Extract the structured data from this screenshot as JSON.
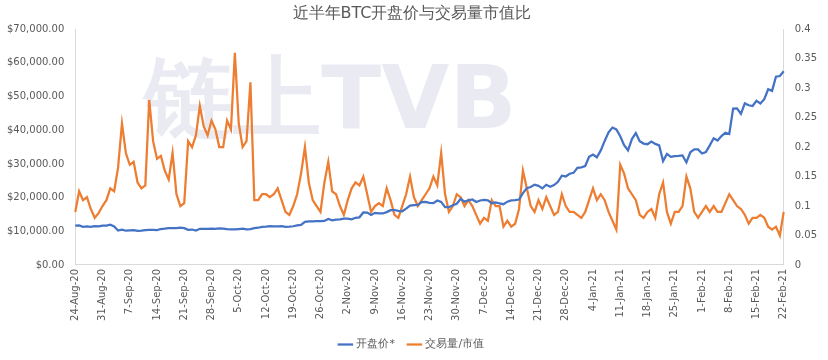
{
  "chart_data": {
    "type": "line",
    "title": "近半年BTC开盘价与交易量市值比",
    "annotation": "链上TVB",
    "legend": "bottom",
    "grid": false,
    "categories": [
      "24-Aug-20",
      null,
      null,
      null,
      null,
      null,
      null,
      "31-Aug-20",
      null,
      null,
      null,
      null,
      null,
      null,
      "7-Sep-20",
      null,
      null,
      null,
      null,
      null,
      null,
      "14-Sep-20",
      null,
      null,
      null,
      null,
      null,
      null,
      "21-Sep-20",
      null,
      null,
      null,
      null,
      null,
      null,
      "28-Sep-20",
      null,
      null,
      null,
      null,
      null,
      null,
      "5-Oct-20",
      null,
      null,
      null,
      null,
      null,
      null,
      "12-Oct-20",
      null,
      null,
      null,
      null,
      null,
      null,
      "19-Oct-20",
      null,
      null,
      null,
      null,
      null,
      null,
      "26-Oct-20",
      null,
      null,
      null,
      null,
      null,
      null,
      "2-Nov-20",
      null,
      null,
      null,
      null,
      null,
      null,
      "9-Nov-20",
      null,
      null,
      null,
      null,
      null,
      null,
      "16-Nov-20",
      null,
      null,
      null,
      null,
      null,
      null,
      "23-Nov-20",
      null,
      null,
      null,
      null,
      null,
      null,
      "30-Nov-20",
      null,
      null,
      null,
      null,
      null,
      null,
      "7-Dec-20",
      null,
      null,
      null,
      null,
      null,
      null,
      "14-Dec-20",
      null,
      null,
      null,
      null,
      null,
      null,
      "21-Dec-20",
      null,
      null,
      null,
      null,
      null,
      null,
      "28-Dec-20",
      null,
      null,
      null,
      null,
      null,
      null,
      "4-Jan-21",
      null,
      null,
      null,
      null,
      null,
      null,
      "11-Jan-21",
      null,
      null,
      null,
      null,
      null,
      null,
      "18-Jan-21",
      null,
      null,
      null,
      null,
      null,
      null,
      "25-Jan-21",
      null,
      null,
      null,
      null,
      null,
      null,
      "1-Feb-21",
      null,
      null,
      null,
      null,
      null,
      null,
      "8-Feb-21",
      null,
      null,
      null,
      null,
      null,
      null,
      "15-Feb-21",
      null,
      null,
      null,
      null,
      null,
      null,
      "22-Feb-21"
    ],
    "ylim": [
      0,
      70000
    ],
    "yticks": [
      {
        "value": 0,
        "label": "$0.00"
      },
      {
        "value": 10000,
        "label": "$10,000.00"
      },
      {
        "value": 20000,
        "label": "$20,000.00"
      },
      {
        "value": 30000,
        "label": "$30,000.00"
      },
      {
        "value": 40000,
        "label": "$40,000.00"
      },
      {
        "value": 50000,
        "label": "$50,000.00"
      },
      {
        "value": 60000,
        "label": "$60,000.00"
      },
      {
        "value": 70000,
        "label": "$70,000.00"
      }
    ],
    "y2lim": [
      0,
      0.4
    ],
    "y2ticks": [
      0,
      0.05,
      0.1,
      0.15,
      0.2,
      0.25,
      0.3,
      0.35,
      0.4
    ],
    "series": [
      {
        "name": "开盘价*",
        "color": "#4472c4",
        "axis": "y",
        "values": [
          11650,
          11750,
          11330,
          11460,
          11320,
          11540,
          11480,
          11710,
          11680,
          11970,
          11410,
          10240,
          10510,
          10170,
          10280,
          10370,
          10130,
          10230,
          10360,
          10400,
          10440,
          10330,
          10680,
          10790,
          10950,
          10940,
          10930,
          11080,
          10920,
          10420,
          10530,
          10240,
          10740,
          10690,
          10730,
          10770,
          10700,
          10840,
          10780,
          10620,
          10570,
          10550,
          10670,
          10790,
          10600,
          10670,
          10920,
          11060,
          11300,
          11380,
          11550,
          11430,
          11430,
          11500,
          11320,
          11360,
          11500,
          11750,
          11910,
          12820,
          12970,
          12930,
          13030,
          13030,
          13070,
          13650,
          13270,
          13450,
          13560,
          13780,
          13740,
          13550,
          14020,
          14150,
          15590,
          15580,
          14830,
          15480,
          15330,
          15290,
          15700,
          16280,
          16320,
          16070,
          15960,
          16720,
          17650,
          17800,
          17820,
          18680,
          18700,
          18420,
          18380,
          19160,
          18720,
          17150,
          17150,
          17720,
          18180,
          19630,
          18800,
          19210,
          19450,
          18700,
          19150,
          19360,
          19170,
          18320,
          18550,
          18260,
          18040,
          18800,
          19160,
          19270,
          19430,
          21350,
          22810,
          23130,
          23860,
          23480,
          22750,
          23820,
          23250,
          23730,
          24680,
          26490,
          26280,
          27080,
          27360,
          28840,
          28990,
          29380,
          32130,
          32810,
          31980,
          34010,
          36830,
          39370,
          40790,
          40250,
          38210,
          35550,
          34050,
          37370,
          39150,
          36770,
          36050,
          35860,
          36660,
          35940,
          35520,
          30830,
          32990,
          32080,
          32290,
          32370,
          32530,
          30440,
          33470,
          34320,
          34320,
          33110,
          33540,
          35510,
          37620,
          36940,
          38290,
          39250,
          38870,
          46450,
          46470,
          44840,
          47970,
          47410,
          47190,
          48720,
          47940,
          49200,
          52170,
          51680,
          55890,
          56100,
          57530
        ]
      },
      {
        "name": "交易量/市值",
        "color": "#ed7d31",
        "axis": "y2",
        "values": [
          0.09,
          0.125,
          0.11,
          0.115,
          0.095,
          0.08,
          0.088,
          0.1,
          0.11,
          0.13,
          0.125,
          0.165,
          0.24,
          0.19,
          0.17,
          0.175,
          0.14,
          0.13,
          0.135,
          0.28,
          0.21,
          0.18,
          0.185,
          0.16,
          0.145,
          0.19,
          0.12,
          0.1,
          0.105,
          0.21,
          0.2,
          0.22,
          0.27,
          0.235,
          0.22,
          0.245,
          0.23,
          0.2,
          0.2,
          0.245,
          0.23,
          0.36,
          0.24,
          0.2,
          0.21,
          0.31,
          0.11,
          0.11,
          0.12,
          0.12,
          0.115,
          0.12,
          0.13,
          0.11,
          0.09,
          0.085,
          0.1,
          0.12,
          0.155,
          0.2,
          0.14,
          0.11,
          0.1,
          0.09,
          0.14,
          0.175,
          0.125,
          0.12,
          0.1,
          0.085,
          0.11,
          0.13,
          0.14,
          0.135,
          0.15,
          0.12,
          0.09,
          0.1,
          0.105,
          0.1,
          0.13,
          0.11,
          0.085,
          0.08,
          0.1,
          0.12,
          0.15,
          0.115,
          0.1,
          0.11,
          0.12,
          0.13,
          0.15,
          0.135,
          0.19,
          0.12,
          0.09,
          0.1,
          0.12,
          0.115,
          0.1,
          0.11,
          0.1,
          0.085,
          0.07,
          0.08,
          0.075,
          0.11,
          0.1,
          0.1,
          0.065,
          0.075,
          0.065,
          0.07,
          0.095,
          0.16,
          0.13,
          0.1,
          0.09,
          0.11,
          0.095,
          0.115,
          0.1,
          0.085,
          0.09,
          0.12,
          0.1,
          0.09,
          0.09,
          0.085,
          0.08,
          0.09,
          0.11,
          0.13,
          0.11,
          0.12,
          0.11,
          0.09,
          0.075,
          0.06,
          0.17,
          0.155,
          0.13,
          0.12,
          0.11,
          0.085,
          0.08,
          0.09,
          0.095,
          0.08,
          0.12,
          0.14,
          0.09,
          0.07,
          0.09,
          0.09,
          0.1,
          0.15,
          0.13,
          0.09,
          0.08,
          0.09,
          0.1,
          0.09,
          0.1,
          0.09,
          0.09,
          0.105,
          0.12,
          0.11,
          0.1,
          0.095,
          0.085,
          0.07,
          0.08,
          0.08,
          0.085,
          0.08,
          0.065,
          0.06,
          0.065,
          0.05,
          0.09
        ]
      }
    ]
  }
}
